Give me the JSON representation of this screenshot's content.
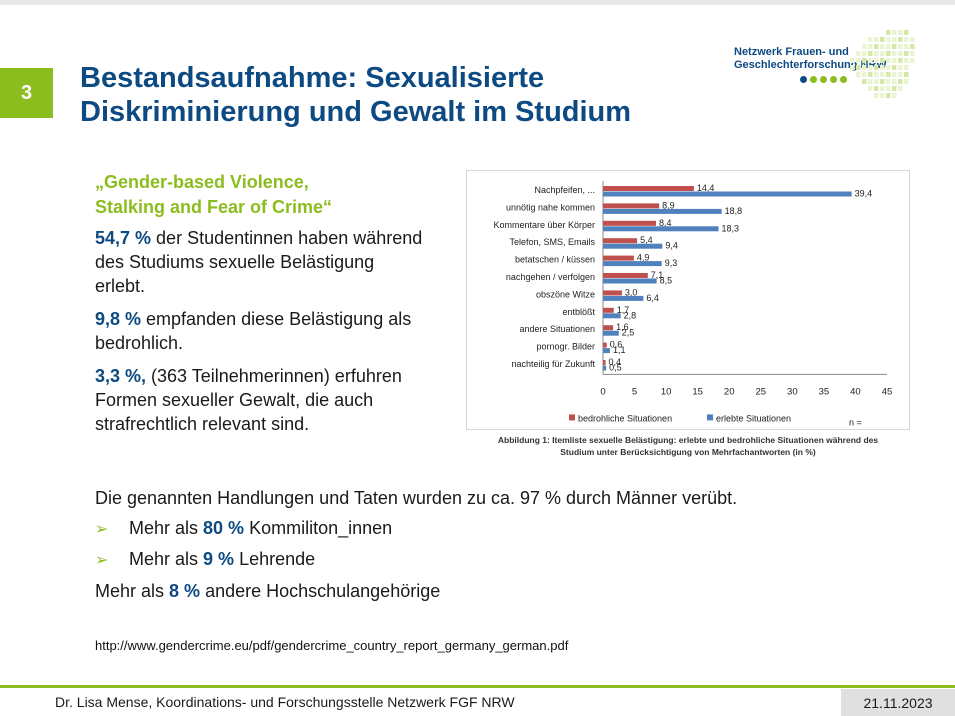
{
  "slide": {
    "number": "3",
    "title_line1": "Bestandsaufnahme: Sexualisierte",
    "title_line2": "Diskriminierung und Gewalt im Studium"
  },
  "logo": {
    "line1": "Netzwerk Frauen- und",
    "line2": "Geschlechterforschung NRW"
  },
  "left": {
    "subhead_line1": "„Gender-based Violence,",
    "subhead_line2": "Stalking and Fear of Crime“",
    "p1_highlight": "54,7 %",
    "p1_text": " der Studentinnen haben während des Studiums sexuelle Belästigung erlebt.",
    "p2_highlight": "9,8 %",
    "p2_text": " empfanden diese Belästigung als bedrohlich.",
    "p3_highlight": "3,3 %,",
    "p3_text": " (363 Teilnehmerinnen) erfuhren Formen sexueller Gewalt, die auch strafrechtlich relevant sind."
  },
  "chart_data": {
    "type": "bar",
    "orientation": "horizontal",
    "categories": [
      "Nachpfeifen, ...",
      "unnötig nahe kommen",
      "Kommentare über Körper",
      "Telefon, SMS, Emails",
      "betatschen / küssen",
      "nachgehen / verfolgen",
      "obszöne Witze",
      "entblößt",
      "andere Situationen",
      "pornogr. Bilder",
      "nachteilig für Zukunft"
    ],
    "series": [
      {
        "name": "bedrohliche Situationen",
        "color": "#c0504d",
        "values": [
          14.4,
          8.9,
          8.4,
          5.4,
          4.9,
          7.1,
          3.0,
          1.7,
          1.6,
          0.6,
          0.4
        ],
        "labels": [
          "14,4",
          "8,9",
          "8,4",
          "5,4",
          "4,9",
          "7,1",
          "3,0",
          "1,7",
          "1,6",
          "0,6",
          "0,4"
        ]
      },
      {
        "name": "erlebte Situationen",
        "color": "#4f81bd",
        "values": [
          39.4,
          18.8,
          18.3,
          9.4,
          9.3,
          8.5,
          6.4,
          2.8,
          2.5,
          1.1,
          0.5
        ],
        "labels": [
          "39,4",
          "18,8",
          "18,3",
          "9,4",
          "9,3",
          "8,5",
          "6,4",
          "2,8",
          "2,5",
          "1,1",
          "0,5"
        ]
      }
    ],
    "xlim": [
      0,
      45
    ],
    "xticks": [
      "0",
      "5",
      "10",
      "15",
      "20",
      "25",
      "30",
      "35",
      "40",
      "45"
    ],
    "legend_position": "bottom",
    "note": "n =",
    "caption_line1": "Abbildung 1: Itemliste sexuelle Belästigung: erlebte und bedrohliche Situationen während des",
    "caption_line2": "Studium unter Berücksichtigung von Mehrfachantworten (in %)"
  },
  "bottom": {
    "summary": "Die genannten Handlungen und Taten wurden zu ca. 97 % durch Männer verübt.",
    "b1_pre": "Mehr als ",
    "b1_hl": "80 %",
    "b1_post": " Kommiliton_innen",
    "b2_pre": "Mehr als ",
    "b2_hl": "9 %",
    "b2_post": " Lehrende",
    "o_pre": "Mehr als ",
    "o_hl": "8 %",
    "o_post": " andere Hochschulangehörige",
    "bullet_glyph": "➢",
    "url": "http://www.gendercrime.eu/pdf/gendercrime_country_report_germany_german.pdf"
  },
  "footer": {
    "author": "Dr. Lisa Mense, Koordinations- und Forschungsstelle Netzwerk FGF NRW",
    "date": "21.11.2023"
  },
  "colors": {
    "accent_green": "#8cbd1f",
    "brand_blue": "#0d4a82"
  }
}
